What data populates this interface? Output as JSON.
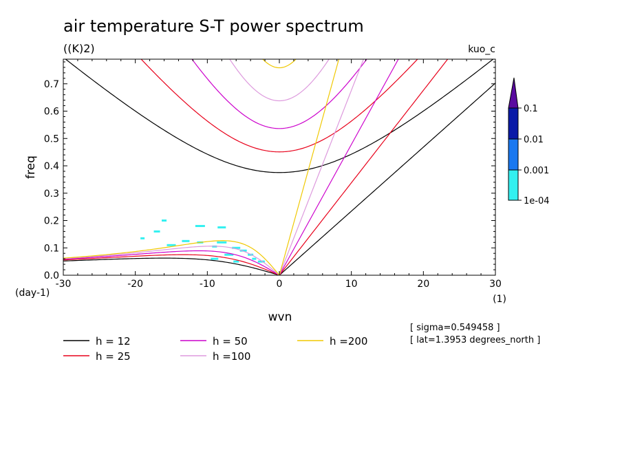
{
  "chart_data": {
    "type": "line",
    "title": "air temperature S-T power spectrum",
    "units": "((K)2)",
    "case_label": "kuo_c",
    "xlabel": "wvn",
    "ylabel": "freq",
    "x_unit_label": "(1)",
    "y_unit_label": "(day-1)",
    "xlim": [
      -30,
      30
    ],
    "ylim": [
      0,
      0.79
    ],
    "x_ticks": [
      -30,
      -20,
      -10,
      0,
      10,
      20,
      30
    ],
    "y_ticks": [
      0.0,
      0.1,
      0.2,
      0.3,
      0.4,
      0.5,
      0.6,
      0.7
    ],
    "x_tick_labels": [
      "-30",
      "-20",
      "-10",
      "0",
      "10",
      "20",
      "30"
    ],
    "y_tick_labels": [
      "0.0",
      "0.1",
      "0.2",
      "0.3",
      "0.4",
      "0.5",
      "0.6",
      "0.7"
    ],
    "grid": false,
    "series": [
      {
        "name": "h = 12",
        "h": 12,
        "color": "#000000"
      },
      {
        "name": "h = 25",
        "h": 25,
        "color": "#e8001a"
      },
      {
        "name": "h = 50",
        "h": 50,
        "color": "#cc00cc"
      },
      {
        "name": "h =100",
        "h": 100,
        "color": "#dd99dd"
      },
      {
        "name": "h =200",
        "h": 200,
        "color": "#f0c800"
      }
    ],
    "colorbar": {
      "levels": [
        "0.1",
        "0.01",
        "0.001",
        "1e-04"
      ],
      "colors": [
        "#5a0aa0",
        "#0a1aa8",
        "#1a78f0",
        "#33f0f0"
      ]
    },
    "shaded_contour_points": [
      {
        "x": -19,
        "y": 0.135
      },
      {
        "x": -15,
        "y": 0.11
      },
      {
        "x": -13,
        "y": 0.125
      },
      {
        "x": -11,
        "y": 0.12
      },
      {
        "x": -9,
        "y": 0.105
      },
      {
        "x": -8,
        "y": 0.12
      },
      {
        "x": -6,
        "y": 0.1
      },
      {
        "x": -5,
        "y": 0.09
      },
      {
        "x": -4,
        "y": 0.075
      },
      {
        "x": -3.5,
        "y": 0.06
      },
      {
        "x": -7,
        "y": 0.075
      },
      {
        "x": -9,
        "y": 0.06
      },
      {
        "x": -17,
        "y": 0.16
      },
      {
        "x": -16,
        "y": 0.2
      },
      {
        "x": -11,
        "y": 0.18
      },
      {
        "x": -8,
        "y": 0.175
      },
      {
        "x": -2.5,
        "y": 0.05
      },
      {
        "x": -6,
        "y": 0.05
      }
    ],
    "annotations": [
      "[ sigma=0.549458 ]",
      "[ lat=1.3953 degrees_north ]"
    ]
  }
}
